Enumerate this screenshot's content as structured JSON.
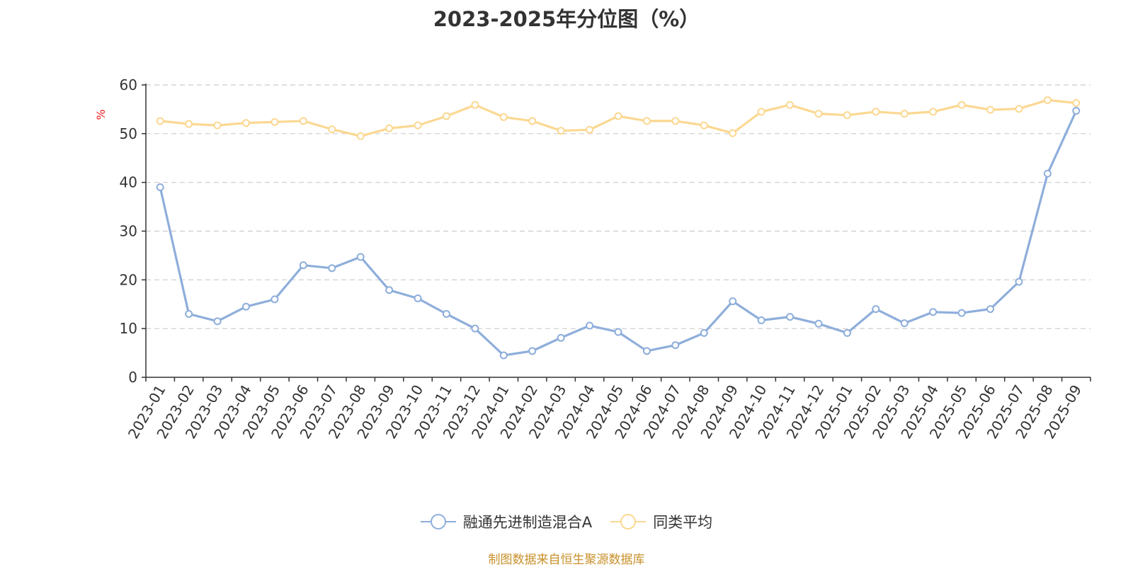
{
  "chart_data": {
    "type": "line",
    "title": "2023-2025年分位图（%）",
    "ylabel": "%",
    "xlabel": "",
    "ylim": [
      0,
      60
    ],
    "yticks": [
      0,
      10,
      20,
      30,
      40,
      50,
      60
    ],
    "grid": true,
    "legend_position": "bottom",
    "categories": [
      "2023-01",
      "2023-02",
      "2023-03",
      "2023-04",
      "2023-05",
      "2023-06",
      "2023-07",
      "2023-08",
      "2023-09",
      "2023-10",
      "2023-11",
      "2023-12",
      "2024-01",
      "2024-02",
      "2024-03",
      "2024-04",
      "2024-05",
      "2024-06",
      "2024-07",
      "2024-08",
      "2024-09",
      "2024-10",
      "2024-11",
      "2024-12",
      "2025-01",
      "2025-02",
      "2025-03",
      "2025-04",
      "2025-05",
      "2025-06",
      "2025-07",
      "2025-08",
      "2025-09"
    ],
    "series": [
      {
        "name": "融通先进制造混合A",
        "color": "#8eaedb",
        "values": [
          39.0,
          13.0,
          11.5,
          14.5,
          16.0,
          23.0,
          22.4,
          24.7,
          17.9,
          16.2,
          13.0,
          10.0,
          4.5,
          5.4,
          8.1,
          10.6,
          9.3,
          5.4,
          6.6,
          9.1,
          15.6,
          11.7,
          12.4,
          11.0,
          9.1,
          14.0,
          11.1,
          13.4,
          13.2,
          14.0,
          19.6,
          41.8,
          54.7
        ]
      },
      {
        "name": "同类平均",
        "color": "#fbd892",
        "values": [
          52.6,
          52.0,
          51.7,
          52.2,
          52.4,
          52.6,
          50.9,
          49.5,
          51.1,
          51.7,
          53.6,
          55.9,
          53.4,
          52.6,
          50.6,
          50.8,
          53.6,
          52.6,
          52.6,
          51.7,
          50.1,
          54.5,
          55.9,
          54.1,
          53.8,
          54.5,
          54.1,
          54.5,
          55.9,
          54.9,
          55.1,
          56.9,
          56.3
        ]
      }
    ]
  },
  "source_note": "制图数据来自恒生聚源数据库"
}
